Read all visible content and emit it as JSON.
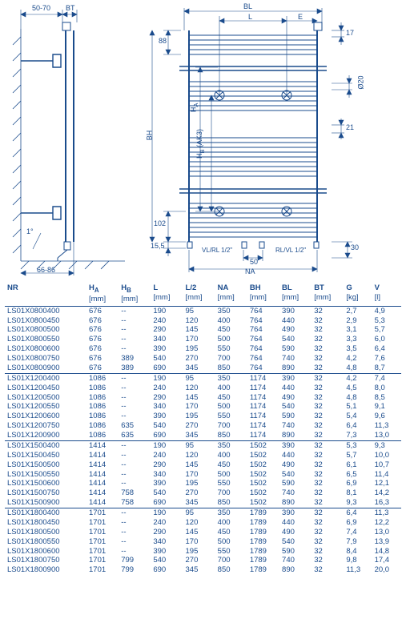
{
  "colors": {
    "line": "#1a4b8c",
    "bg": "#ffffff"
  },
  "diagram": {
    "left_view": {
      "dim_50_70": "50-70",
      "dim_BT": "BT",
      "dim_1deg": "1°",
      "dim_66_86": "66-86"
    },
    "front_view": {
      "dim_BL": "BL",
      "dim_L": "L",
      "dim_E": "E",
      "dim_88": "88",
      "dim_17": "17",
      "dim_HA": "H",
      "dim_HA_sub": "A",
      "dim_BH": "BH",
      "dim_HB": "H",
      "dim_HB_sub": "B",
      "dim_HB_note": "(AK3)",
      "dim_d20": "Ø20",
      "dim_21": "21",
      "dim_102": "102",
      "dim_15_5": "15,5",
      "dim_50": "50",
      "dim_30": "30",
      "dim_NA": "NA",
      "vl_rl_left": "VL/RL 1/2\"",
      "rl_vl_right": "RL/VL 1/2\""
    }
  },
  "table": {
    "columns": [
      {
        "key": "nr",
        "label": "NR",
        "unit": ""
      },
      {
        "key": "ha",
        "label": "H",
        "sub": "A",
        "unit": "[mm]"
      },
      {
        "key": "hb",
        "label": "H",
        "sub": "B",
        "unit": "[mm]"
      },
      {
        "key": "l",
        "label": "L",
        "unit": "[mm]"
      },
      {
        "key": "l2",
        "label": "L/2",
        "unit": "[mm]"
      },
      {
        "key": "na",
        "label": "NA",
        "unit": "[mm]"
      },
      {
        "key": "bh",
        "label": "BH",
        "unit": "[mm]"
      },
      {
        "key": "bl",
        "label": "BL",
        "unit": "[mm]"
      },
      {
        "key": "bt",
        "label": "BT",
        "unit": "[mm]"
      },
      {
        "key": "g",
        "label": "G",
        "unit": "[kg]"
      },
      {
        "key": "v",
        "label": "V",
        "unit": "[l]"
      }
    ],
    "groups": [
      {
        "rows": [
          [
            "LS01X0800400",
            "676",
            "--",
            "190",
            "95",
            "350",
            "764",
            "390",
            "32",
            "2,7",
            "4,9"
          ],
          [
            "LS01X0800450",
            "676",
            "--",
            "240",
            "120",
            "400",
            "764",
            "440",
            "32",
            "2,9",
            "5,3"
          ],
          [
            "LS01X0800500",
            "676",
            "--",
            "290",
            "145",
            "450",
            "764",
            "490",
            "32",
            "3,1",
            "5,7"
          ],
          [
            "LS01X0800550",
            "676",
            "--",
            "340",
            "170",
            "500",
            "764",
            "540",
            "32",
            "3,3",
            "6,0"
          ],
          [
            "LS01X0800600",
            "676",
            "--",
            "390",
            "195",
            "550",
            "764",
            "590",
            "32",
            "3,5",
            "6,4"
          ],
          [
            "LS01X0800750",
            "676",
            "389",
            "540",
            "270",
            "700",
            "764",
            "740",
            "32",
            "4,2",
            "7,6"
          ],
          [
            "LS01X0800900",
            "676",
            "389",
            "690",
            "345",
            "850",
            "764",
            "890",
            "32",
            "4,8",
            "8,7"
          ]
        ]
      },
      {
        "rows": [
          [
            "LS01X1200400",
            "1086",
            "--",
            "190",
            "95",
            "350",
            "1174",
            "390",
            "32",
            "4,2",
            "7,4"
          ],
          [
            "LS01X1200450",
            "1086",
            "--",
            "240",
            "120",
            "400",
            "1174",
            "440",
            "32",
            "4,5",
            "8,0"
          ],
          [
            "LS01X1200500",
            "1086",
            "--",
            "290",
            "145",
            "450",
            "1174",
            "490",
            "32",
            "4,8",
            "8,5"
          ],
          [
            "LS01X1200550",
            "1086",
            "--",
            "340",
            "170",
            "500",
            "1174",
            "540",
            "32",
            "5,1",
            "9,1"
          ],
          [
            "LS01X1200600",
            "1086",
            "--",
            "390",
            "195",
            "550",
            "1174",
            "590",
            "32",
            "5,4",
            "9,6"
          ],
          [
            "LS01X1200750",
            "1086",
            "635",
            "540",
            "270",
            "700",
            "1174",
            "740",
            "32",
            "6,4",
            "11,3"
          ],
          [
            "LS01X1200900",
            "1086",
            "635",
            "690",
            "345",
            "850",
            "1174",
            "890",
            "32",
            "7,3",
            "13,0"
          ]
        ]
      },
      {
        "rows": [
          [
            "LS01X1500400",
            "1414",
            "--",
            "190",
            "95",
            "350",
            "1502",
            "390",
            "32",
            "5,3",
            "9,3"
          ],
          [
            "LS01X1500450",
            "1414",
            "--",
            "240",
            "120",
            "400",
            "1502",
            "440",
            "32",
            "5,7",
            "10,0"
          ],
          [
            "LS01X1500500",
            "1414",
            "--",
            "290",
            "145",
            "450",
            "1502",
            "490",
            "32",
            "6,1",
            "10,7"
          ],
          [
            "LS01X1500550",
            "1414",
            "--",
            "340",
            "170",
            "500",
            "1502",
            "540",
            "32",
            "6,5",
            "11,4"
          ],
          [
            "LS01X1500600",
            "1414",
            "--",
            "390",
            "195",
            "550",
            "1502",
            "590",
            "32",
            "6,9",
            "12,1"
          ],
          [
            "LS01X1500750",
            "1414",
            "758",
            "540",
            "270",
            "700",
            "1502",
            "740",
            "32",
            "8,1",
            "14,2"
          ],
          [
            "LS01X1500900",
            "1414",
            "758",
            "690",
            "345",
            "850",
            "1502",
            "890",
            "32",
            "9,3",
            "16,3"
          ]
        ]
      },
      {
        "rows": [
          [
            "LS01X1800400",
            "1701",
            "--",
            "190",
            "95",
            "350",
            "1789",
            "390",
            "32",
            "6,4",
            "11,3"
          ],
          [
            "LS01X1800450",
            "1701",
            "--",
            "240",
            "120",
            "400",
            "1789",
            "440",
            "32",
            "6,9",
            "12,2"
          ],
          [
            "LS01X1800500",
            "1701",
            "--",
            "290",
            "145",
            "450",
            "1789",
            "490",
            "32",
            "7,4",
            "13,0"
          ],
          [
            "LS01X1800550",
            "1701",
            "--",
            "340",
            "170",
            "500",
            "1789",
            "540",
            "32",
            "7,9",
            "13,9"
          ],
          [
            "LS01X1800600",
            "1701",
            "--",
            "390",
            "195",
            "550",
            "1789",
            "590",
            "32",
            "8,4",
            "14,8"
          ],
          [
            "LS01X1800750",
            "1701",
            "799",
            "540",
            "270",
            "700",
            "1789",
            "740",
            "32",
            "9,8",
            "17,4"
          ],
          [
            "LS01X1800900",
            "1701",
            "799",
            "690",
            "345",
            "850",
            "1789",
            "890",
            "32",
            "11,3",
            "20,0"
          ]
        ]
      }
    ]
  }
}
